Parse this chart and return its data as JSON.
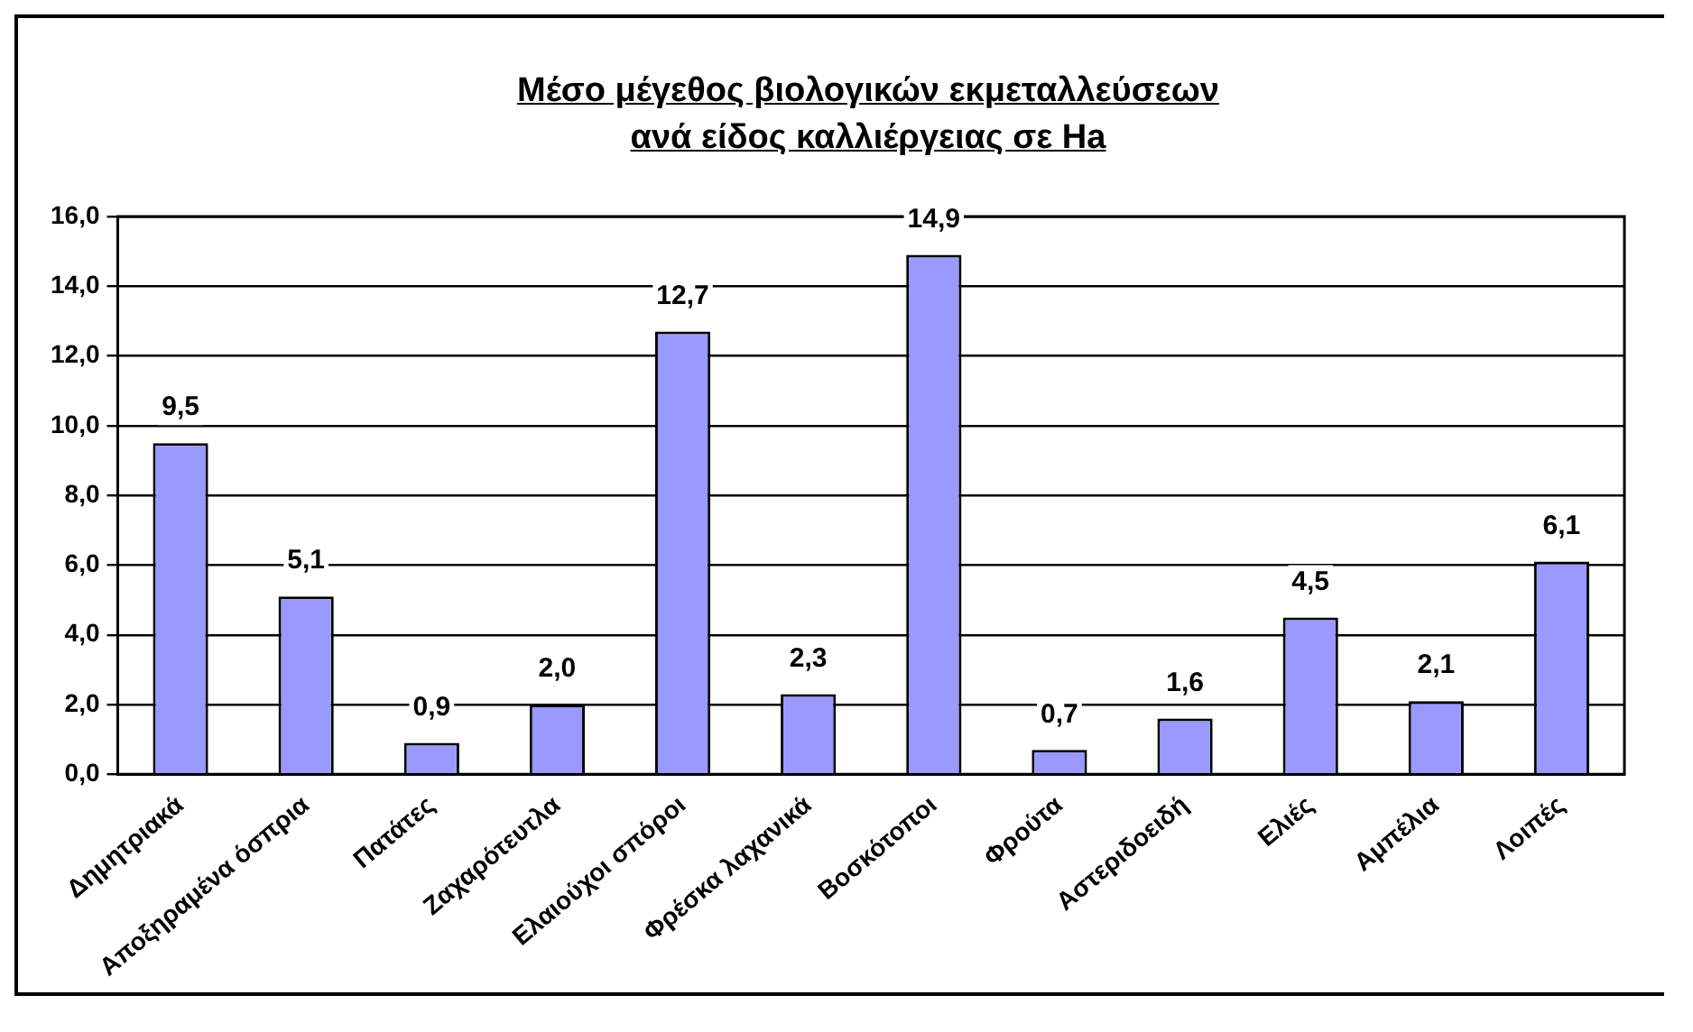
{
  "chart_data": {
    "type": "bar",
    "title": "Μέσο μέγεθος βιολογικών εκμεταλλεύσεων\nανά είδος καλλιέργειας σε Ha",
    "categories": [
      "Δημητριακά",
      "Αποξηραμένα όσπρια",
      "Πατάτες",
      "Ζαχαρότευτλα",
      "Ελαιούχοι σπόροι",
      "Φρέσκα λαχανικά",
      "Βοσκότοποι",
      "Φρούτα",
      "Αστεριδοειδή",
      "Ελιές",
      "Αμπέλια",
      "Λοιπές"
    ],
    "values": [
      9.5,
      5.1,
      0.9,
      2.0,
      12.7,
      2.3,
      14.9,
      0.7,
      1.6,
      4.5,
      2.1,
      6.1
    ],
    "value_labels": [
      "9,5",
      "5,1",
      "0,9",
      "2,0",
      "12,7",
      "2,3",
      "14,9",
      "0,7",
      "1,6",
      "4,5",
      "2,1",
      "6,1"
    ],
    "color": "#9999ff",
    "ylim": [
      0,
      16
    ],
    "yticks": [
      {
        "value": 0,
        "label": "0,0"
      },
      {
        "value": 2,
        "label": "2,0"
      },
      {
        "value": 4,
        "label": "4,0"
      },
      {
        "value": 6,
        "label": "6,0"
      },
      {
        "value": 8,
        "label": "8,0"
      },
      {
        "value": 10,
        "label": "10,0"
      },
      {
        "value": 12,
        "label": "12,0"
      },
      {
        "value": 14,
        "label": "14,0"
      },
      {
        "value": 16,
        "label": "16,0"
      }
    ],
    "grid": "y",
    "legend": false
  }
}
